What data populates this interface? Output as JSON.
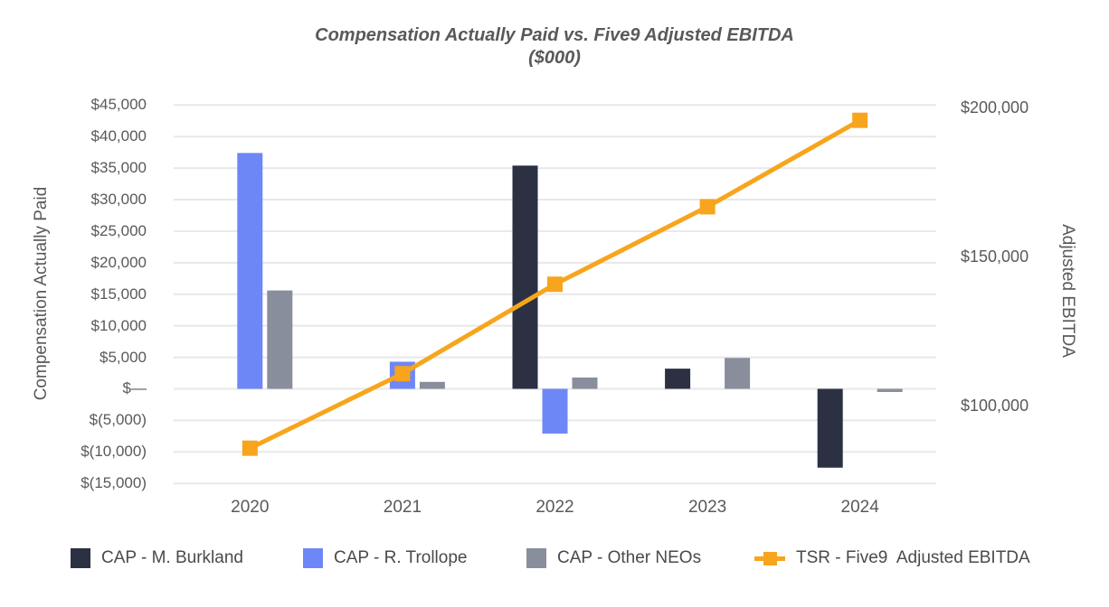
{
  "title": {
    "line1": "Compensation Actually Paid vs. Five9 Adjusted EBITDA",
    "line2": "($000)"
  },
  "colors": {
    "cap_m_burkland": "#2B3143",
    "cap_r_trollope": "#6E87F7",
    "cap_other_neos": "#898E9C",
    "tsr_line": "#F7A51C",
    "gridline": "#e8e8e8",
    "axis_text": "#595959",
    "legend_text": "#4a4a4a",
    "background": "#ffffff"
  },
  "legend": {
    "items": [
      {
        "label": "CAP - M. Burkland",
        "marker": "square",
        "color": "#2B3143"
      },
      {
        "label": "CAP - R. Trollope",
        "marker": "square",
        "color": "#6E87F7"
      },
      {
        "label": "CAP - Other NEOs",
        "marker": "square",
        "color": "#898E9C"
      },
      {
        "label": "TSR - Five9  Adjusted EBITDA",
        "marker": "line-square",
        "color": "#F7A51C"
      }
    ]
  },
  "chart_data": {
    "type": "combo",
    "title": "Compensation Actually Paid vs. Five9 Adjusted EBITDA ($000)",
    "categories": [
      "2020",
      "2021",
      "2022",
      "2023",
      "2024"
    ],
    "series": [
      {
        "name": "CAP - M. Burkland",
        "type": "bar",
        "axis": "left",
        "color": "#2B3143",
        "values": [
          null,
          null,
          35400,
          3200,
          -12500
        ]
      },
      {
        "name": "CAP - R. Trollope",
        "type": "bar",
        "axis": "left",
        "color": "#6E87F7",
        "values": [
          37400,
          4300,
          -7100,
          null,
          null
        ]
      },
      {
        "name": "CAP - Other NEOs",
        "type": "bar",
        "axis": "left",
        "color": "#898E9C",
        "values": [
          15600,
          1100,
          1800,
          4900,
          -500
        ]
      },
      {
        "name": "TSR - Five9  Adjusted EBITDA",
        "type": "line",
        "axis": "right",
        "color": "#F7A51C",
        "marker": "square",
        "values": [
          86000,
          111000,
          141000,
          167000,
          196000
        ]
      }
    ],
    "left_axis": {
      "label": "Compensation Actually Paid",
      "min": -15000,
      "max": 45000,
      "tick_step": 5000,
      "tick_labels": [
        "$45,000",
        "$40,000",
        "$35,000",
        "$30,000",
        "$25,000",
        "$20,000",
        "$15,000",
        "$10,000",
        "$5,000",
        "$—",
        "$(5,000)",
        "$(10,000)",
        "$(15,000)"
      ]
    },
    "right_axis": {
      "label": "Adjusted EBITDA",
      "ticks": [
        {
          "label": "$200,000",
          "value": 200000
        },
        {
          "label": "$150,000",
          "value": 150000
        },
        {
          "label": "$100,000",
          "value": 100000
        }
      ]
    },
    "grid": true,
    "legend_position": "bottom"
  }
}
